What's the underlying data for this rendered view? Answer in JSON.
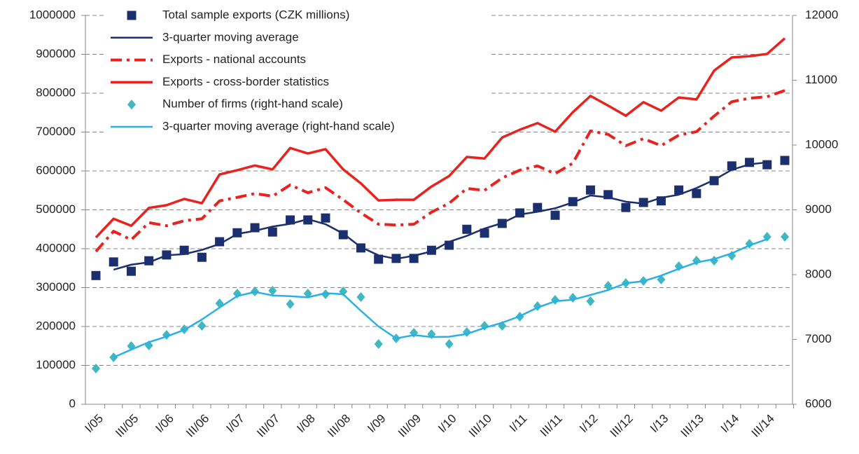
{
  "chart_data": {
    "type": "line",
    "categories": [
      "I/05",
      null,
      "III/05",
      null,
      "I/06",
      null,
      "III/06",
      null,
      "I/07",
      null,
      "III/07",
      null,
      "I/08",
      null,
      "III/08",
      null,
      "I/09",
      null,
      "III/09",
      null,
      "I/10",
      null,
      "III/10",
      null,
      "I/11",
      null,
      "III/11",
      null,
      "I/12",
      null,
      "III/12",
      null,
      "I/13",
      null,
      "III/13",
      null,
      "I/14",
      null,
      "III/14",
      null
    ],
    "series": [
      {
        "name": "Total sample exports (CZK millions)",
        "color": "#1b2f6e",
        "style": "square",
        "axis": "y",
        "values": [
          331000,
          366000,
          342000,
          369000,
          384000,
          396000,
          378000,
          418000,
          441000,
          454000,
          443000,
          474000,
          474000,
          479000,
          436000,
          402000,
          373000,
          375000,
          375000,
          396000,
          409000,
          450000,
          440000,
          465000,
          492000,
          506000,
          486000,
          521000,
          551000,
          539000,
          506000,
          519000,
          523000,
          551000,
          542000,
          575000,
          613000,
          622000,
          616000,
          627000
        ]
      },
      {
        "name": "3-quarter moving average",
        "color": "#1b2f6e",
        "style": "solid",
        "axis": "y",
        "values": [
          null,
          346000,
          359000,
          365000,
          383000,
          386000,
          397000,
          412000,
          438000,
          446000,
          457000,
          464000,
          476000,
          463000,
          439000,
          404000,
          383000,
          374000,
          382000,
          393000,
          418000,
          433000,
          452000,
          466000,
          488000,
          495000,
          504000,
          519000,
          537000,
          532000,
          521000,
          516000,
          531000,
          539000,
          556000,
          577000,
          603000,
          617000,
          622000,
          null
        ]
      },
      {
        "name": "Exports - national accounts",
        "color": "#e8231f",
        "style": "dashdot",
        "axis": "y",
        "values": [
          393000,
          445000,
          423000,
          467000,
          459000,
          472000,
          477000,
          523000,
          532000,
          542000,
          535000,
          564000,
          544000,
          557000,
          526000,
          492000,
          463000,
          461000,
          463000,
          494000,
          517000,
          555000,
          550000,
          582000,
          602000,
          613000,
          593000,
          620000,
          703000,
          694000,
          665000,
          683000,
          665000,
          692000,
          701000,
          741000,
          778000,
          787000,
          791000,
          807000
        ]
      },
      {
        "name": "Exports - cross-border statistics",
        "color": "#e8231f",
        "style": "solid",
        "axis": "y",
        "values": [
          429000,
          477000,
          459000,
          505000,
          512000,
          528000,
          517000,
          591000,
          602000,
          614000,
          604000,
          659000,
          645000,
          656000,
          604000,
          568000,
          524000,
          526000,
          526000,
          560000,
          587000,
          636000,
          632000,
          686000,
          706000,
          723000,
          701000,
          751000,
          793000,
          768000,
          742000,
          777000,
          755000,
          789000,
          784000,
          858000,
          892000,
          895000,
          901000,
          941000
        ]
      },
      {
        "name": "Number of firms (right-hand scale)",
        "color": "#3fb8c2",
        "style": "diamond",
        "axis": "y2",
        "values": [
          6551,
          6724,
          6897,
          6908,
          7070,
          7157,
          7211,
          7557,
          7708,
          7741,
          7751,
          7546,
          7708,
          7697,
          7741,
          7654,
          6930,
          7016,
          7103,
          7081,
          6930,
          7114,
          7211,
          7211,
          7351,
          7514,
          7611,
          7643,
          7589,
          7827,
          7870,
          7903,
          7924,
          8130,
          8216,
          8216,
          8292,
          8476,
          8584,
          8584
        ]
      },
      {
        "name": "3-quarter moving average (right-hand scale)",
        "color": "#2ab0e8",
        "style": "solid",
        "axis": "y2",
        "values": [
          null,
          6724,
          6843,
          6958,
          7045,
          7146,
          7308,
          7492,
          7669,
          7733,
          7679,
          7668,
          7650,
          7715,
          7697,
          7442,
          7200,
          7016,
          7067,
          7038,
          7042,
          7085,
          7179,
          7258,
          7359,
          7492,
          7589,
          7614,
          7686,
          7762,
          7867,
          7899,
          7986,
          8090,
          8187,
          8241,
          8328,
          8451,
          8548,
          null
        ]
      }
    ],
    "ylim": [
      0,
      1000000
    ],
    "yticks": [
      0,
      100000,
      200000,
      300000,
      400000,
      500000,
      600000,
      700000,
      800000,
      900000,
      1000000
    ],
    "y2lim": [
      6000,
      12000
    ],
    "y2ticks": [
      6000,
      7000,
      8000,
      9000,
      10000,
      11000,
      12000
    ],
    "grid": true,
    "legend": "upper left"
  }
}
